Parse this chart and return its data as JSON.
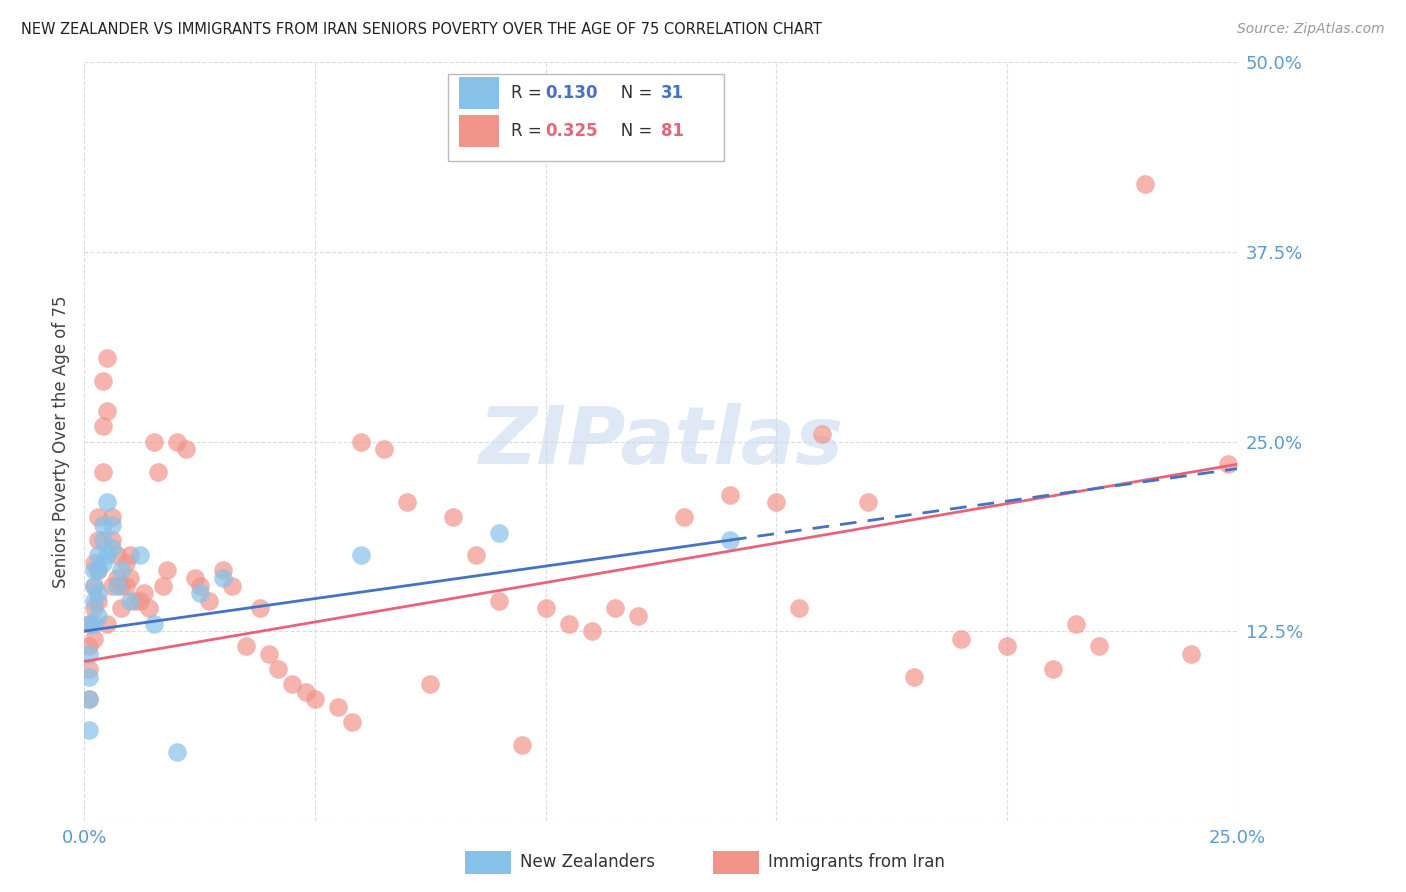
{
  "title": "NEW ZEALANDER VS IMMIGRANTS FROM IRAN SENIORS POVERTY OVER THE AGE OF 75 CORRELATION CHART",
  "source": "Source: ZipAtlas.com",
  "ylabel": "Seniors Poverty Over the Age of 75",
  "xlim": [
    0.0,
    0.25
  ],
  "ylim": [
    0.0,
    0.5
  ],
  "xticks": [
    0.0,
    0.05,
    0.1,
    0.15,
    0.2,
    0.25
  ],
  "xticklabels": [
    "0.0%",
    "",
    "",
    "",
    "",
    "25.0%"
  ],
  "yticks": [
    0.0,
    0.125,
    0.25,
    0.375,
    0.5
  ],
  "yticklabels": [
    "",
    "12.5%",
    "25.0%",
    "37.5%",
    "50.0%"
  ],
  "nz_color": "#85C1E9",
  "iran_color": "#F1948A",
  "nz_line_color": "#4472C4",
  "iran_line_color": "#E8647A",
  "watermark": "ZIPatlas",
  "background_color": "#FFFFFF",
  "grid_color": "#DCDCDC",
  "tick_color": "#5B9BD5",
  "nz_R": 0.13,
  "nz_N": 31,
  "iran_R": 0.325,
  "iran_N": 81,
  "nz_scatter_x": [
    0.001,
    0.001,
    0.001,
    0.001,
    0.001,
    0.002,
    0.002,
    0.002,
    0.002,
    0.003,
    0.003,
    0.003,
    0.003,
    0.004,
    0.004,
    0.004,
    0.005,
    0.005,
    0.006,
    0.006,
    0.007,
    0.008,
    0.01,
    0.012,
    0.015,
    0.02,
    0.025,
    0.03,
    0.06,
    0.09,
    0.14
  ],
  "nz_scatter_y": [
    0.13,
    0.11,
    0.095,
    0.08,
    0.06,
    0.165,
    0.155,
    0.145,
    0.13,
    0.175,
    0.165,
    0.15,
    0.135,
    0.195,
    0.185,
    0.17,
    0.21,
    0.175,
    0.195,
    0.18,
    0.155,
    0.165,
    0.145,
    0.175,
    0.13,
    0.045,
    0.15,
    0.16,
    0.175,
    0.19,
    0.185
  ],
  "iran_scatter_x": [
    0.001,
    0.001,
    0.001,
    0.001,
    0.002,
    0.002,
    0.002,
    0.002,
    0.003,
    0.003,
    0.003,
    0.003,
    0.004,
    0.004,
    0.004,
    0.005,
    0.005,
    0.005,
    0.006,
    0.006,
    0.006,
    0.007,
    0.007,
    0.008,
    0.008,
    0.009,
    0.009,
    0.01,
    0.01,
    0.011,
    0.012,
    0.013,
    0.014,
    0.015,
    0.016,
    0.017,
    0.018,
    0.02,
    0.022,
    0.024,
    0.025,
    0.027,
    0.03,
    0.032,
    0.035,
    0.038,
    0.04,
    0.042,
    0.045,
    0.048,
    0.05,
    0.055,
    0.058,
    0.06,
    0.065,
    0.07,
    0.075,
    0.08,
    0.085,
    0.09,
    0.095,
    0.1,
    0.105,
    0.11,
    0.115,
    0.12,
    0.13,
    0.14,
    0.15,
    0.155,
    0.16,
    0.17,
    0.18,
    0.19,
    0.2,
    0.21,
    0.215,
    0.22,
    0.23,
    0.24,
    0.248
  ],
  "iran_scatter_y": [
    0.13,
    0.115,
    0.1,
    0.08,
    0.17,
    0.155,
    0.14,
    0.12,
    0.2,
    0.185,
    0.165,
    0.145,
    0.29,
    0.26,
    0.23,
    0.305,
    0.27,
    0.13,
    0.2,
    0.185,
    0.155,
    0.175,
    0.16,
    0.155,
    0.14,
    0.17,
    0.155,
    0.175,
    0.16,
    0.145,
    0.145,
    0.15,
    0.14,
    0.25,
    0.23,
    0.155,
    0.165,
    0.25,
    0.245,
    0.16,
    0.155,
    0.145,
    0.165,
    0.155,
    0.115,
    0.14,
    0.11,
    0.1,
    0.09,
    0.085,
    0.08,
    0.075,
    0.065,
    0.25,
    0.245,
    0.21,
    0.09,
    0.2,
    0.175,
    0.145,
    0.05,
    0.14,
    0.13,
    0.125,
    0.14,
    0.135,
    0.2,
    0.215,
    0.21,
    0.14,
    0.255,
    0.21,
    0.095,
    0.12,
    0.115,
    0.1,
    0.13,
    0.115,
    0.42,
    0.11,
    0.235
  ]
}
